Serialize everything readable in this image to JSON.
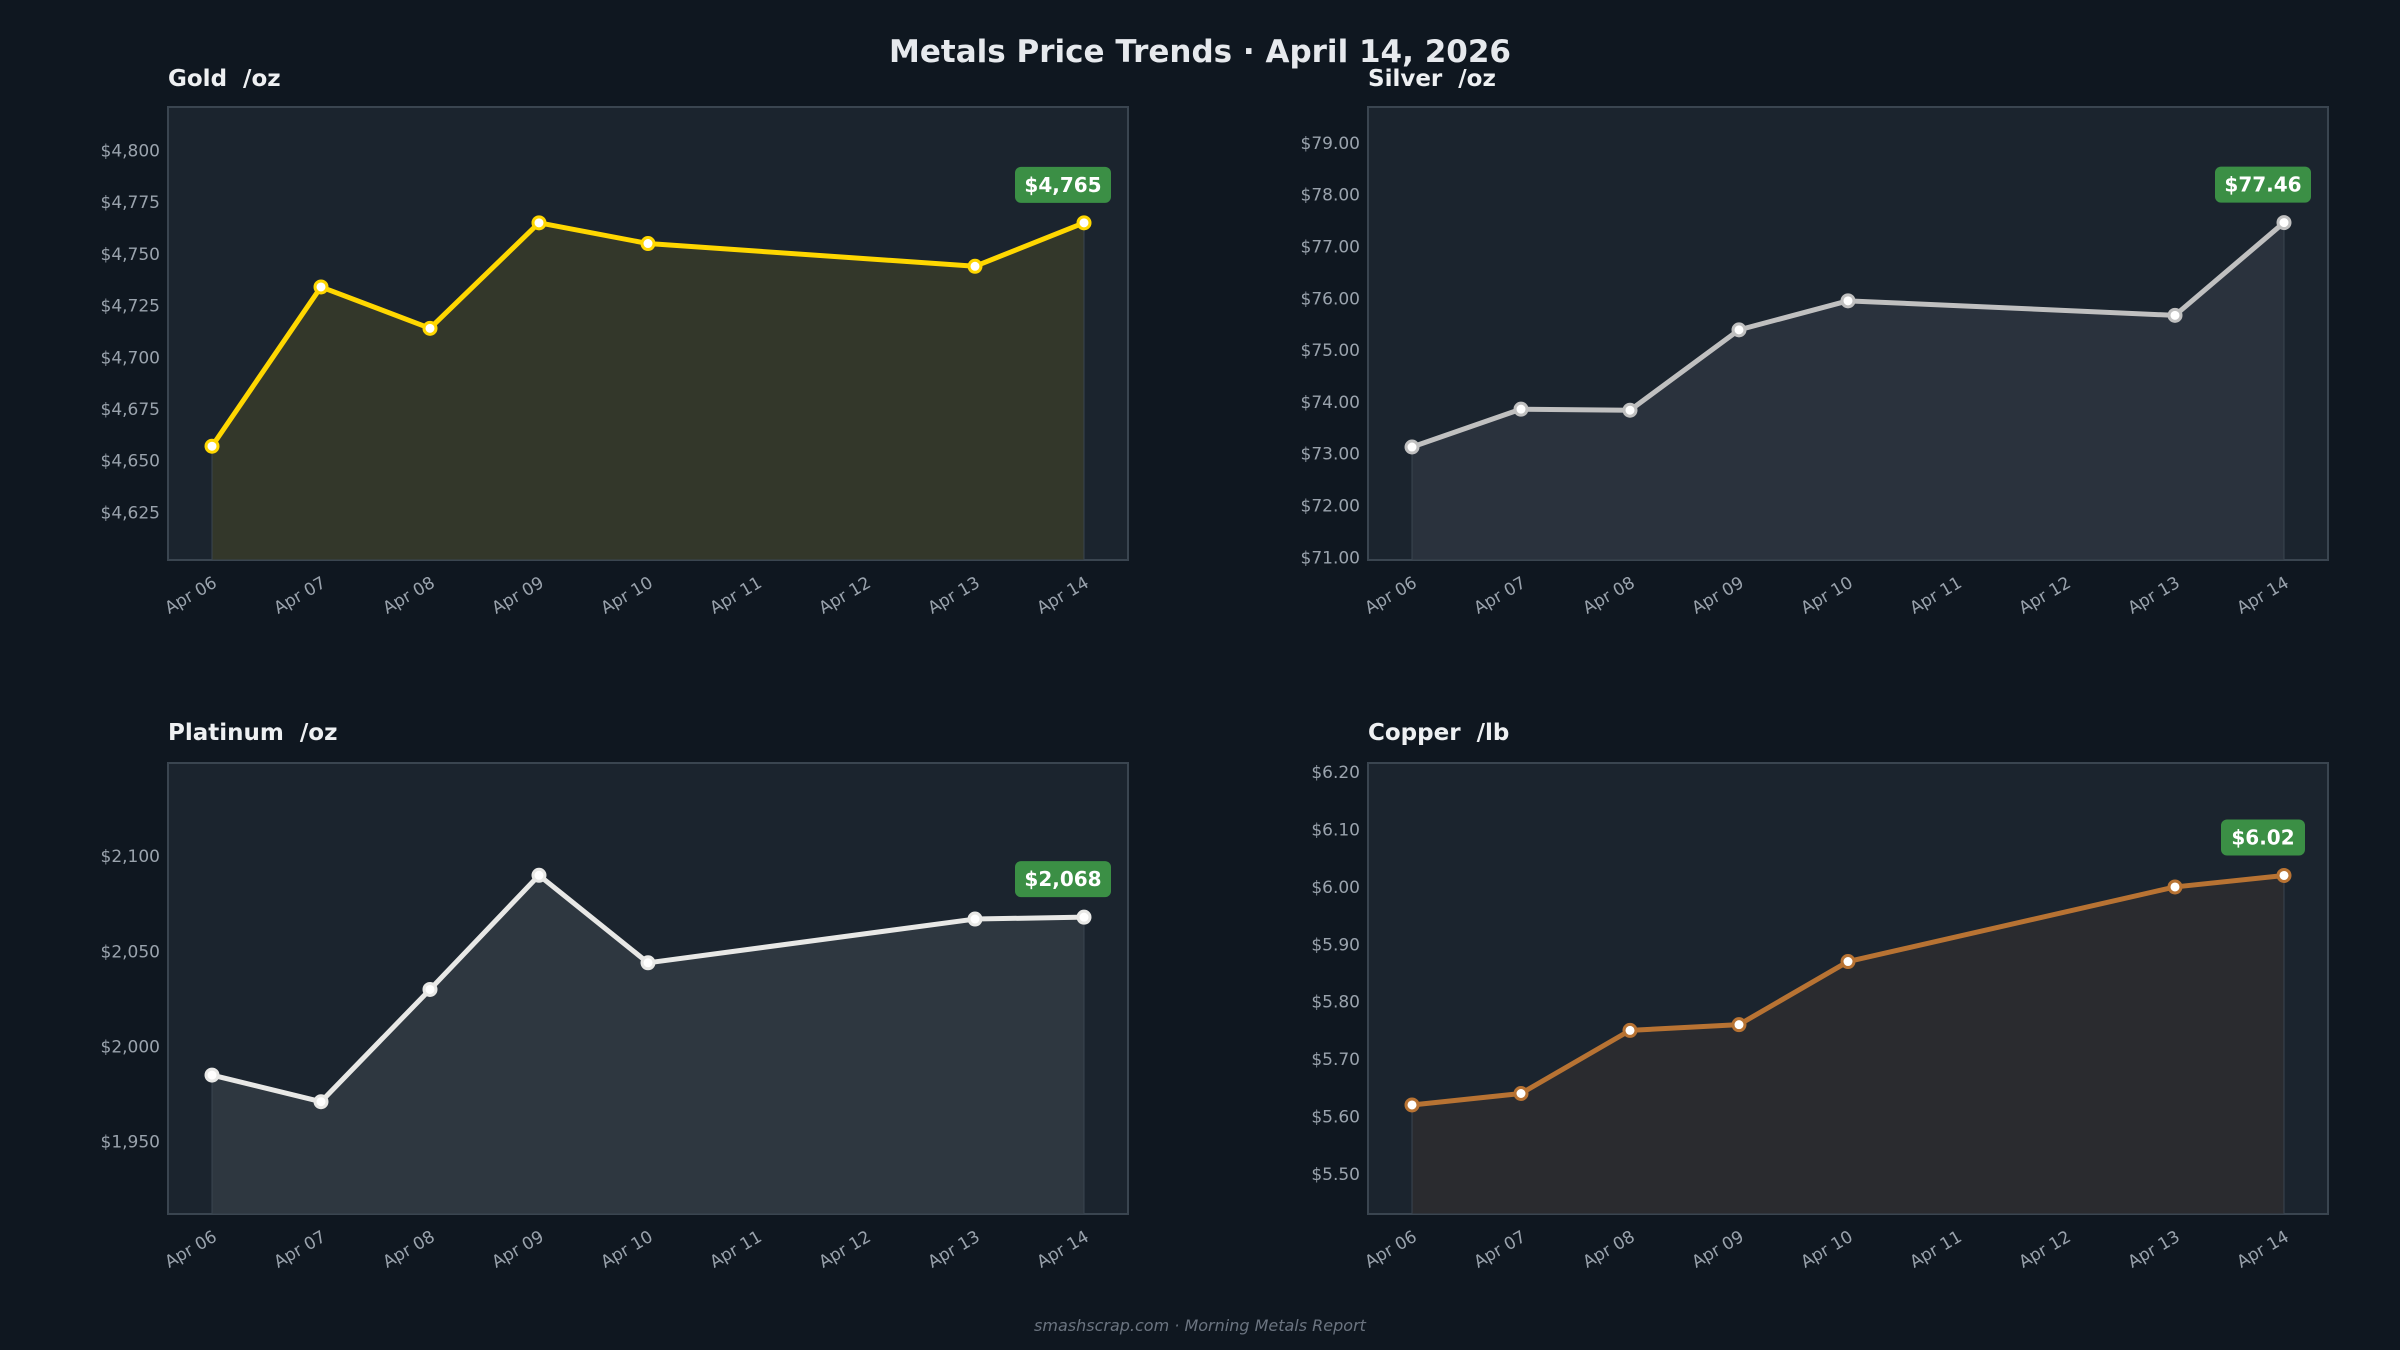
{
  "title": "Metals Price Trends  ·  April 14, 2026",
  "footer": "smashscrap.com  ·  Morning Metals Report",
  "colors": {
    "background": "#0f1720",
    "plot_background": "#1b242e",
    "badge": "#3b8f45"
  },
  "chart_data": [
    {
      "type": "area",
      "title": "Gold  /oz",
      "x_ticks": [
        "Apr 06",
        "Apr 07",
        "Apr 08",
        "Apr 09",
        "Apr 10",
        "Apr 11",
        "Apr 12",
        "Apr 13",
        "Apr 14"
      ],
      "x": [
        "Apr 06",
        "Apr 07",
        "Apr 08",
        "Apr 09",
        "Apr 10",
        "Apr 13",
        "Apr 14"
      ],
      "values": [
        4657,
        4734,
        4714,
        4765,
        4755,
        4744,
        4765
      ],
      "y_ticks": [
        "$4,625",
        "$4,650",
        "$4,675",
        "$4,700",
        "$4,725",
        "$4,750",
        "$4,775",
        "$4,800"
      ],
      "y_tick_values": [
        4625,
        4650,
        4675,
        4700,
        4725,
        4750,
        4775,
        4800
      ],
      "ylim": [
        4602,
        4821
      ],
      "last_label": "$4,765",
      "color": "#ffd700",
      "fill": "#33372a"
    },
    {
      "type": "area",
      "title": "Silver  /oz",
      "x_ticks": [
        "Apr 06",
        "Apr 07",
        "Apr 08",
        "Apr 09",
        "Apr 10",
        "Apr 11",
        "Apr 12",
        "Apr 13",
        "Apr 14"
      ],
      "x": [
        "Apr 06",
        "Apr 07",
        "Apr 08",
        "Apr 09",
        "Apr 10",
        "Apr 13",
        "Apr 14"
      ],
      "values": [
        73.13,
        73.86,
        73.84,
        75.39,
        75.95,
        75.67,
        77.46
      ],
      "y_ticks": [
        "$71.00",
        "$72.00",
        "$73.00",
        "$74.00",
        "$75.00",
        "$76.00",
        "$77.00",
        "$78.00",
        "$79.00"
      ],
      "y_tick_values": [
        71,
        72,
        73,
        74,
        75,
        76,
        77,
        78,
        79
      ],
      "ylim": [
        70.95,
        79.69
      ],
      "last_label": "$77.46",
      "color": "#c0c0c0",
      "fill": "#2a323d"
    },
    {
      "type": "area",
      "title": "Platinum  /oz",
      "x_ticks": [
        "Apr 06",
        "Apr 07",
        "Apr 08",
        "Apr 09",
        "Apr 10",
        "Apr 11",
        "Apr 12",
        "Apr 13",
        "Apr 14"
      ],
      "x": [
        "Apr 06",
        "Apr 07",
        "Apr 08",
        "Apr 09",
        "Apr 10",
        "Apr 13",
        "Apr 14"
      ],
      "values": [
        1985,
        1971,
        2030,
        2090,
        2044,
        2067,
        2068
      ],
      "y_ticks": [
        "$1,950",
        "$2,000",
        "$2,050",
        "$2,100"
      ],
      "y_tick_values": [
        1950,
        2000,
        2050,
        2100
      ],
      "ylim": [
        1912,
        2149
      ],
      "last_label": "$2,068",
      "color": "#e8e8e6",
      "fill": "#2e3740"
    },
    {
      "type": "area",
      "title": "Copper  /lb",
      "x_ticks": [
        "Apr 06",
        "Apr 07",
        "Apr 08",
        "Apr 09",
        "Apr 10",
        "Apr 11",
        "Apr 12",
        "Apr 13",
        "Apr 14"
      ],
      "x": [
        "Apr 06",
        "Apr 07",
        "Apr 08",
        "Apr 09",
        "Apr 10",
        "Apr 13",
        "Apr 14"
      ],
      "values": [
        5.62,
        5.64,
        5.75,
        5.76,
        5.87,
        6.0,
        6.02
      ],
      "y_ticks": [
        "$5.50",
        "$5.60",
        "$5.70",
        "$5.80",
        "$5.90",
        "$6.00",
        "$6.10",
        "$6.20"
      ],
      "y_tick_values": [
        5.5,
        5.6,
        5.7,
        5.8,
        5.9,
        6.0,
        6.1,
        6.2
      ],
      "ylim": [
        5.43,
        6.216
      ],
      "last_label": "$6.02",
      "color": "#b87333",
      "fill": "#2a2b2f"
    }
  ]
}
